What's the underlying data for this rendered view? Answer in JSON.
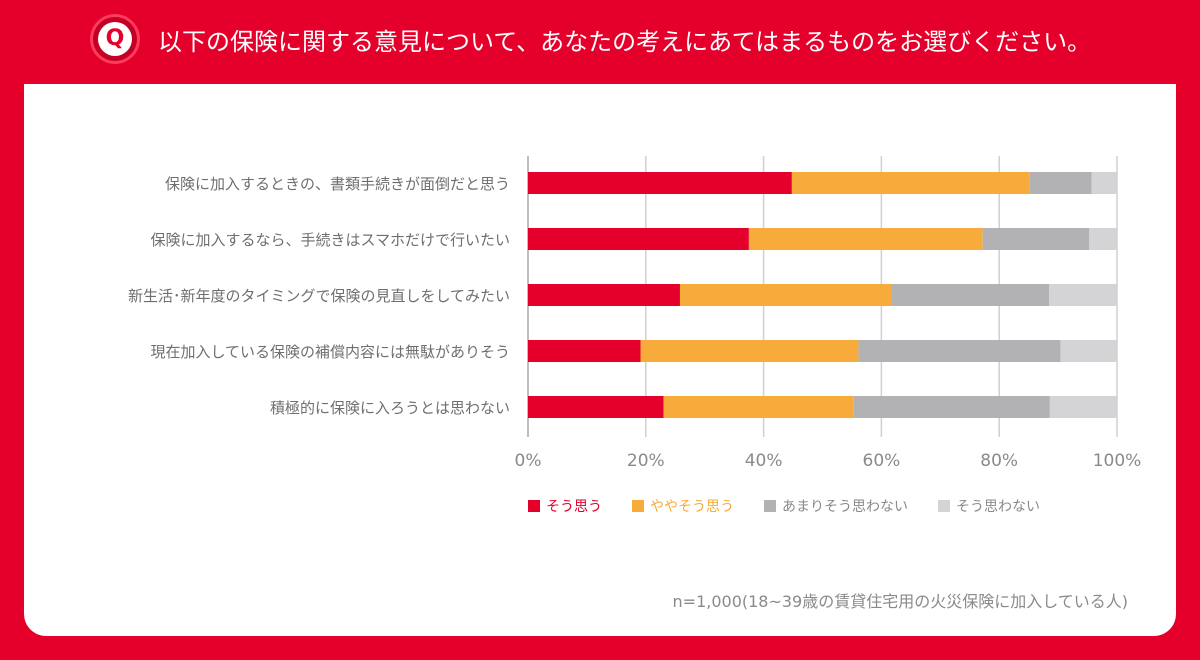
{
  "header": {
    "badge": "Q",
    "title": "以下の保険に関する意見について、あなたの考えにあてはまるものをお選びください。"
  },
  "chart_data": {
    "type": "bar",
    "orientation": "horizontal",
    "stacked": true,
    "categories": [
      "保険に加入するときの、書類手続きが面倒だと思う",
      "保険に加入するなら、手続きはスマホだけで行いたい",
      "新生活･新年度のタイミングで保険の見直しをしてみたい",
      "現在加入している保険の補償内容には無駄がありそう",
      "積極的に保険に入ろうとは思わない"
    ],
    "series": [
      {
        "name": "そう思う",
        "color": "#e4002b",
        "values": [
          44.8,
          37.5,
          25.8,
          19.1,
          23.0
        ]
      },
      {
        "name": "ややそう思う",
        "color": "#f6ab3b",
        "values": [
          40.4,
          39.7,
          36.0,
          37.0,
          32.3
        ]
      },
      {
        "name": "あまりそう思わない",
        "color": "#b2b2b4",
        "values": [
          10.5,
          18.1,
          26.7,
          34.3,
          33.3
        ]
      },
      {
        "name": "そう思わない",
        "color": "#d4d4d6",
        "values": [
          4.3,
          4.7,
          11.5,
          9.6,
          11.4
        ]
      }
    ],
    "xlim": [
      0,
      100
    ],
    "xticks": [
      "0%",
      "20%",
      "40%",
      "60%",
      "80%",
      "100%"
    ],
    "grid": true,
    "legend_position": "bottom"
  },
  "note": "n=1,000(18~39歳の賃貸住宅用の火災保険に加入している人)"
}
